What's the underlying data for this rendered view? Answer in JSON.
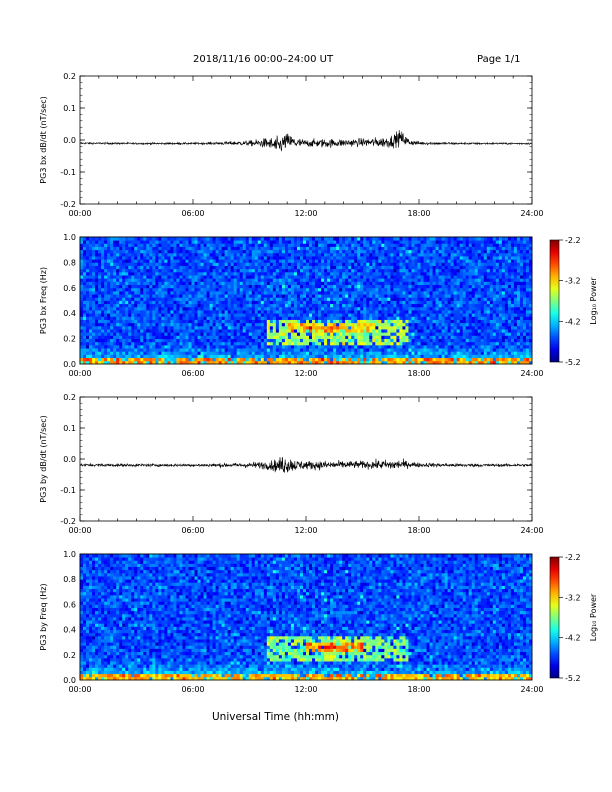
{
  "header": {
    "title": "2018/11/16  00:00–24:00 UT",
    "page": "Page 1/1"
  },
  "xlabel": "Universal Time (hh:mm)",
  "chart_data": [
    {
      "type": "line",
      "ylabel": "PG3 bx dB/dt (nT/sec)",
      "xlim": [
        0,
        24
      ],
      "ylim": [
        -0.2,
        0.2
      ],
      "x_ticks": [
        "00:00",
        "06:00",
        "12:00",
        "18:00",
        "24:00"
      ],
      "y_ticks": [
        "0.2",
        "0.1",
        "0.0",
        "-0.1",
        "-0.2"
      ],
      "series": [
        {
          "x": [
            0,
            3,
            6,
            8,
            9,
            10,
            10.5,
            11,
            11.5,
            12,
            13,
            14,
            15,
            16,
            16.5,
            17,
            17.5,
            18,
            20,
            22,
            24
          ],
          "y_min": [
            -0.015,
            -0.016,
            -0.016,
            -0.02,
            -0.025,
            -0.04,
            -0.07,
            -0.045,
            -0.04,
            -0.03,
            -0.035,
            -0.03,
            -0.03,
            -0.035,
            -0.04,
            -0.035,
            -0.025,
            -0.02,
            -0.017,
            -0.016,
            -0.016
          ],
          "y_max": [
            -0.005,
            -0.006,
            -0.006,
            0.0,
            0.005,
            0.02,
            0.03,
            0.04,
            0.02,
            0.01,
            0.015,
            0.012,
            0.015,
            0.02,
            0.03,
            0.05,
            0.01,
            0.0,
            -0.005,
            -0.006,
            -0.006
          ]
        }
      ]
    },
    {
      "type": "heatmap",
      "ylabel": "PG3 bx Freq (Hz)",
      "xlim": [
        0,
        24
      ],
      "ylim": [
        0.0,
        1.0
      ],
      "x_ticks": [
        "00:00",
        "06:00",
        "12:00",
        "18:00",
        "24:00"
      ],
      "y_ticks": [
        "1.0",
        "0.8",
        "0.6",
        "0.4",
        "0.2",
        "0.0"
      ],
      "colorbar": {
        "label": "Log₁₀ Power",
        "ticks": [
          "-2.2",
          "-3.2",
          "-4.2",
          "-5.2"
        ],
        "range": [
          -5.2,
          -2.2
        ]
      },
      "features": [
        {
          "t": [
            0,
            24
          ],
          "f": [
            0.0,
            0.05
          ],
          "level": -3.0
        },
        {
          "t": [
            10,
            17.5
          ],
          "f": [
            0.15,
            0.35
          ],
          "level": -3.6
        },
        {
          "t": [
            11,
            16
          ],
          "f": [
            0.25,
            0.32
          ],
          "level": -3.2
        },
        {
          "t": [
            12,
            14
          ],
          "f": [
            0.27,
            0.31
          ],
          "level": -2.9
        }
      ]
    },
    {
      "type": "line",
      "ylabel": "PG3 by dB/dt (nT/sec)",
      "xlim": [
        0,
        24
      ],
      "ylim": [
        -0.2,
        0.2
      ],
      "x_ticks": [
        "00:00",
        "06:00",
        "12:00",
        "18:00",
        "24:00"
      ],
      "y_ticks": [
        "0.2",
        "0.1",
        "0.0",
        "-0.1",
        "-0.2"
      ],
      "series": [
        {
          "x": [
            0,
            3,
            6,
            8,
            9,
            10,
            10.5,
            10.8,
            11.5,
            12,
            13,
            14,
            15,
            16,
            16.5,
            17,
            17.5,
            18,
            20,
            22,
            24
          ],
          "y_min": [
            -0.027,
            -0.028,
            -0.028,
            -0.032,
            -0.035,
            -0.045,
            -0.06,
            -0.075,
            -0.05,
            -0.045,
            -0.045,
            -0.04,
            -0.04,
            -0.045,
            -0.05,
            -0.045,
            -0.035,
            -0.032,
            -0.03,
            -0.028,
            -0.028
          ],
          "y_max": [
            -0.012,
            -0.012,
            -0.012,
            -0.008,
            -0.005,
            0.005,
            0.015,
            0.04,
            0.01,
            0.005,
            0.005,
            0.003,
            0.003,
            0.008,
            0.01,
            0.01,
            0.0,
            -0.006,
            -0.01,
            -0.012,
            -0.012
          ]
        }
      ]
    },
    {
      "type": "heatmap",
      "ylabel": "PG3 by Freq (Hz)",
      "xlim": [
        0,
        24
      ],
      "ylim": [
        0.0,
        1.0
      ],
      "x_ticks": [
        "00:00",
        "06:00",
        "12:00",
        "18:00",
        "24:00"
      ],
      "y_ticks": [
        "1.0",
        "0.8",
        "0.6",
        "0.4",
        "0.2",
        "0.0"
      ],
      "colorbar": {
        "label": "Log₁₀ Power",
        "ticks": [
          "-2.2",
          "-3.2",
          "-4.2",
          "-5.2"
        ],
        "range": [
          -5.2,
          -2.2
        ]
      },
      "features": [
        {
          "t": [
            0,
            24
          ],
          "f": [
            0.0,
            0.05
          ],
          "level": -3.1
        },
        {
          "t": [
            10,
            17.5
          ],
          "f": [
            0.15,
            0.35
          ],
          "level": -3.7
        },
        {
          "t": [
            12,
            15
          ],
          "f": [
            0.22,
            0.3
          ],
          "level": -3.0
        },
        {
          "t": [
            12.5,
            14
          ],
          "f": [
            0.24,
            0.28
          ],
          "level": -2.6
        }
      ]
    }
  ]
}
